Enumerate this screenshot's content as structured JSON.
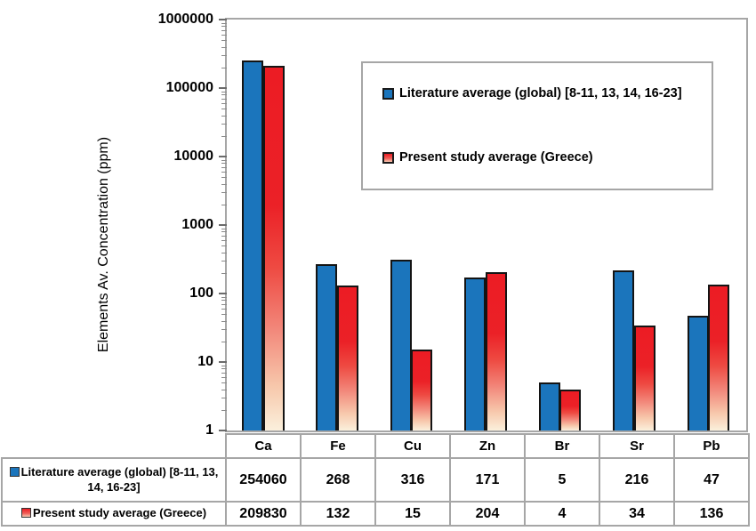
{
  "figure": {
    "y_axis": {
      "title": "Elements Av. Concentration (ppm)",
      "tick_labels": [
        "1000000",
        "100000",
        "10000",
        "1000",
        "100",
        "10",
        "1"
      ],
      "scale": "log",
      "log_min": 0,
      "log_max": 6
    },
    "colors": {
      "series1_fill": "#1B75BC",
      "series2_gradient_top": "#EC1C24",
      "series2_gradient_bottom": "#FBF0DC",
      "bar_border": "#141414",
      "frame_border": "#A6A6A6"
    }
  },
  "chart_data": {
    "type": "bar",
    "categories": [
      "Ca",
      "Fe",
      "Cu",
      "Zn",
      "Br",
      "Sr",
      "Pb"
    ],
    "series": [
      {
        "name": "Literature average (global) [8-11, 13, 14, 16-23]",
        "values": [
          254060,
          268,
          316,
          171,
          5,
          216,
          47
        ]
      },
      {
        "name": "Present study average (Greece)",
        "values": [
          209830,
          132,
          15,
          204,
          4,
          34,
          136
        ]
      }
    ],
    "title": "",
    "xlabel": "",
    "ylabel": "Elements Av. Concentration (ppm)",
    "yscale": "log",
    "ylim": [
      1,
      1000000
    ],
    "grid": false,
    "legend_position": "inside upper right box"
  },
  "legend": {
    "items": [
      {
        "label": "Literature average (global) [8-11, 13, 14, 16-23]",
        "swatch": "blue-solid"
      },
      {
        "label": "Present study average (Greece)",
        "swatch": "red-gradient"
      }
    ]
  },
  "table": {
    "column_headers": [
      "Ca",
      "Fe",
      "Cu",
      "Zn",
      "Br",
      "Sr",
      "Pb"
    ],
    "rows": [
      {
        "label": "Literature average (global) [8-11, 13, 14, 16-23]",
        "swatch": "blue-solid",
        "values": [
          "254060",
          "268",
          "316",
          "171",
          "5",
          "216",
          "47"
        ]
      },
      {
        "label": "Present study average (Greece)",
        "swatch": "red-gradient",
        "values": [
          "209830",
          "132",
          "15",
          "204",
          "4",
          "34",
          "136"
        ]
      }
    ]
  }
}
